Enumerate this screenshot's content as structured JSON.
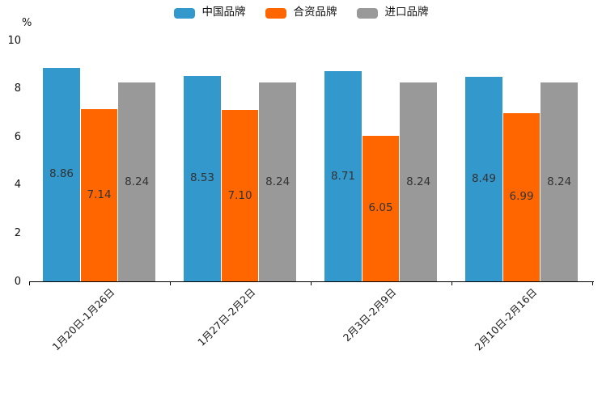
{
  "chart_data": {
    "type": "bar",
    "title": "",
    "unit_label": "%",
    "categories": [
      "1月20日-1月26日",
      "1月27日-2月2日",
      "2月3日-2月9日",
      "2月10日-2月16日"
    ],
    "series": [
      {
        "name": "中国品牌",
        "color": "#3398CC",
        "values": [
          8.86,
          8.53,
          8.71,
          8.49
        ]
      },
      {
        "name": "合资品牌",
        "color": "#FF6600",
        "values": [
          7.14,
          7.1,
          6.05,
          6.99
        ]
      },
      {
        "name": "进口品牌",
        "color": "#999999",
        "values": [
          8.24,
          8.24,
          8.24,
          8.24
        ]
      }
    ],
    "ylim": [
      0,
      10
    ],
    "yticks": [
      0,
      2,
      4,
      6,
      8,
      10
    ],
    "grid": false,
    "legend_position": "top-center",
    "value_labels": "centered-inside-bars",
    "value_label_color": "#333333",
    "axis_color": "#000000",
    "xlabel_rotation_deg": 45
  }
}
